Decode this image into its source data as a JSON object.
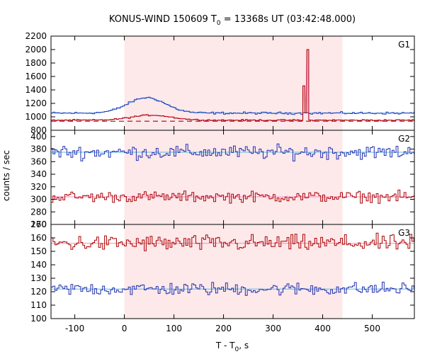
{
  "chart_data": {
    "type": "line",
    "title": {
      "prefix": "KONUS-WIND 150609 T",
      "subscript": "0",
      "suffix": " = 13368s UT (03:42:48.000)"
    },
    "xlabel": {
      "prefix": "T - T",
      "subscript": "0",
      "suffix": ", s"
    },
    "ylabel": "counts / sec",
    "xlim": [
      -148,
      585
    ],
    "xticks": [
      -100,
      0,
      100,
      200,
      300,
      400,
      500
    ],
    "highlight_interval": [
      0,
      440
    ],
    "highlight_color": "#fde8ea",
    "panels": [
      {
        "label": "G1",
        "ylim": [
          800,
          2200
        ],
        "yticks": [
          800,
          1000,
          1200,
          1400,
          1600,
          1800,
          2000,
          2200
        ],
        "series": [
          {
            "role": "upper",
            "color": "#1f3fbf",
            "fit_color": "#5fb8e0",
            "baseline": 1055,
            "noise": 14,
            "features": [
              {
                "type": "bump",
                "center": 45,
                "sigma": 38,
                "amp": 230
              },
              {
                "type": "spike",
                "from": 362,
                "to": 372,
                "value": 1060
              }
            ]
          },
          {
            "role": "lower",
            "color": "#aa0000",
            "fit_color": "#ff88c8",
            "baseline": 950,
            "noise": 9,
            "background_level": 935,
            "background_style": "dashed",
            "features": [
              {
                "type": "bump",
                "center": 55,
                "sigma": 40,
                "amp": 75
              },
              {
                "type": "spike",
                "from": 362,
                "to": 366,
                "value": 1460
              },
              {
                "type": "spike",
                "from": 366,
                "to": 368,
                "value": 1060
              },
              {
                "type": "spike",
                "from": 368,
                "to": 372,
                "value": 2000
              }
            ]
          }
        ]
      },
      {
        "label": "G2",
        "ylim": [
          260,
          410
        ],
        "yticks": [
          260,
          280,
          300,
          320,
          340,
          360,
          380,
          400
        ],
        "series": [
          {
            "role": "upper",
            "color": "#2030b0",
            "fit_color": "#5fb8e0",
            "baseline": 375,
            "noise": 9,
            "features": []
          },
          {
            "role": "lower",
            "color": "#aa0000",
            "fit_color": "#ff88c8",
            "baseline": 304,
            "noise": 7,
            "features": []
          }
        ]
      },
      {
        "label": "G3",
        "ylim": [
          100,
          170
        ],
        "yticks": [
          100,
          110,
          120,
          130,
          140,
          150,
          160,
          170
        ],
        "series": [
          {
            "role": "upper",
            "color": "#aa0000",
            "fit_color": "#ff88c8",
            "baseline": 156,
            "noise": 5,
            "features": []
          },
          {
            "role": "lower",
            "color": "#2030b0",
            "fit_color": "#5fb8e0",
            "baseline": 122,
            "noise": 4,
            "features": []
          }
        ]
      }
    ]
  }
}
